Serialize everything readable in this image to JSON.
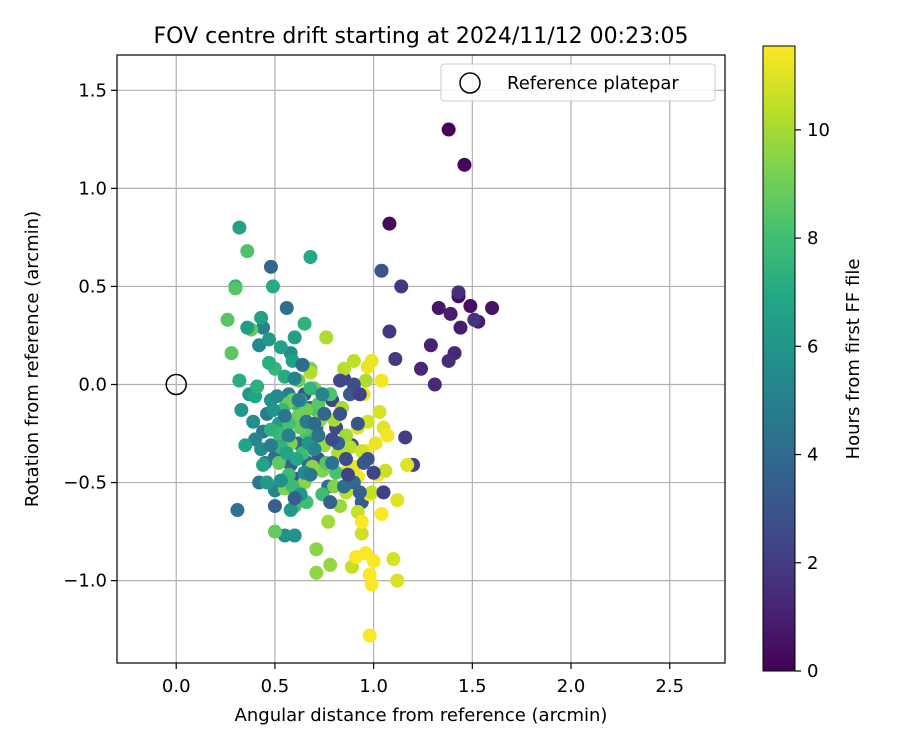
{
  "chart_data": {
    "type": "scatter",
    "title": "FOV centre drift starting at 2024/11/12 00:23:05",
    "xlabel": "Angular distance from reference (arcmin)",
    "ylabel": "Rotation from reference (arcmin)",
    "xlim": [
      -0.3,
      2.78
    ],
    "ylim": [
      -1.42,
      1.68
    ],
    "xticks": [
      0.0,
      0.5,
      1.0,
      1.5,
      2.0,
      2.5
    ],
    "xtick_labels": [
      "0.0",
      "0.5",
      "1.0",
      "1.5",
      "2.0",
      "2.5"
    ],
    "yticks": [
      -1.0,
      -0.5,
      0.0,
      0.5,
      1.0,
      1.5
    ],
    "ytick_labels": [
      "−1.0",
      "−0.5",
      "0.0",
      "0.5",
      "1.0",
      "1.5"
    ],
    "grid": true,
    "legend": {
      "position": "top-right",
      "entries": [
        {
          "label": "Reference platepar",
          "marker": "open-circle",
          "x": 0.0,
          "y": 0.0
        }
      ]
    },
    "colorbar": {
      "label": "Hours from first FF file",
      "colormap": "viridis",
      "range": [
        0,
        11.55
      ],
      "ticks": [
        0,
        2,
        4,
        6,
        8,
        10
      ],
      "tick_labels": [
        "0",
        "2",
        "4",
        "6",
        "8",
        "10"
      ]
    },
    "points": [
      [
        1.38,
        1.3,
        0.1
      ],
      [
        1.46,
        1.12,
        0.2
      ],
      [
        1.08,
        0.82,
        0.3
      ],
      [
        1.43,
        0.45,
        0.4
      ],
      [
        1.49,
        0.4,
        0.5
      ],
      [
        1.6,
        0.39,
        0.6
      ],
      [
        1.33,
        0.39,
        0.7
      ],
      [
        1.53,
        0.32,
        0.8
      ],
      [
        1.44,
        0.29,
        0.9
      ],
      [
        1.39,
        0.36,
        1.0
      ],
      [
        1.29,
        0.2,
        1.1
      ],
      [
        1.24,
        0.08,
        1.2
      ],
      [
        1.41,
        0.16,
        1.3
      ],
      [
        1.31,
        0.0,
        1.4
      ],
      [
        1.38,
        0.12,
        1.5
      ],
      [
        1.43,
        0.47,
        1.6
      ],
      [
        1.51,
        0.33,
        1.7
      ],
      [
        1.14,
        0.5,
        1.8
      ],
      [
        1.08,
        0.27,
        1.9
      ],
      [
        1.11,
        0.13,
        2.0
      ],
      [
        1.16,
        -0.27,
        2.1
      ],
      [
        1.2,
        -0.41,
        2.2
      ],
      [
        0.85,
        0.03,
        2.3
      ],
      [
        0.79,
        -0.08,
        2.4
      ],
      [
        0.74,
        -0.16,
        2.5
      ],
      [
        0.81,
        -0.22,
        2.6
      ],
      [
        0.89,
        -0.31,
        2.7
      ],
      [
        0.68,
        -0.12,
        2.8
      ],
      [
        0.72,
        -0.38,
        2.9
      ],
      [
        1.04,
        0.58,
        3.0
      ],
      [
        0.65,
        -0.05,
        3.1
      ],
      [
        0.6,
        -0.48,
        3.2
      ],
      [
        0.88,
        -0.45,
        3.3
      ],
      [
        0.94,
        -0.6,
        3.4
      ],
      [
        0.5,
        -0.62,
        3.5
      ],
      [
        0.62,
        -0.3,
        3.6
      ],
      [
        0.58,
        -0.41,
        3.7
      ],
      [
        0.48,
        0.6,
        3.8
      ],
      [
        0.71,
        -0.22,
        3.9
      ],
      [
        0.67,
        -0.4,
        4.0
      ],
      [
        0.77,
        -0.52,
        4.1
      ],
      [
        0.56,
        0.39,
        4.2
      ],
      [
        0.31,
        -0.64,
        4.3
      ],
      [
        0.5,
        -0.37,
        4.4
      ],
      [
        0.45,
        -0.4,
        4.5
      ],
      [
        0.42,
        -0.5,
        4.6
      ],
      [
        0.44,
        -0.24,
        4.7
      ],
      [
        0.46,
        -0.15,
        4.8
      ],
      [
        0.54,
        -0.3,
        4.9
      ],
      [
        0.57,
        -0.05,
        5.0
      ],
      [
        0.44,
        0.29,
        5.1
      ],
      [
        0.5,
        -0.54,
        5.2
      ],
      [
        0.4,
        -0.28,
        5.3
      ],
      [
        0.42,
        0.2,
        5.4
      ],
      [
        0.63,
        -0.18,
        5.5
      ],
      [
        0.7,
        -0.28,
        5.6
      ],
      [
        0.58,
        0.16,
        5.7
      ],
      [
        0.55,
        -0.77,
        5.8
      ],
      [
        0.6,
        -0.77,
        5.9
      ],
      [
        0.48,
        -0.08,
        6.0
      ],
      [
        0.33,
        -0.13,
        6.1
      ],
      [
        0.37,
        -0.05,
        6.2
      ],
      [
        0.46,
        -0.5,
        6.3
      ],
      [
        0.52,
        -0.2,
        6.4
      ],
      [
        0.6,
        0.24,
        6.5
      ],
      [
        0.43,
        0.34,
        6.6
      ],
      [
        0.32,
        0.8,
        6.7
      ],
      [
        0.35,
        -0.31,
        6.8
      ],
      [
        0.4,
        -0.06,
        6.9
      ],
      [
        0.68,
        0.65,
        7.0
      ],
      [
        0.49,
        0.5,
        7.1
      ],
      [
        0.32,
        0.02,
        7.2
      ],
      [
        0.3,
        0.5,
        7.3
      ],
      [
        0.65,
        0.31,
        7.4
      ],
      [
        0.61,
        -0.1,
        7.5
      ],
      [
        0.5,
        0.08,
        7.6
      ],
      [
        0.52,
        -0.25,
        7.7
      ],
      [
        0.64,
        -0.35,
        7.8
      ],
      [
        0.57,
        -0.46,
        7.9
      ],
      [
        0.6,
        -0.62,
        8.0
      ],
      [
        0.72,
        -0.14,
        8.1
      ],
      [
        0.66,
        -0.25,
        8.2
      ],
      [
        0.36,
        0.68,
        8.3
      ],
      [
        0.3,
        0.49,
        8.4
      ],
      [
        0.26,
        0.33,
        8.5
      ],
      [
        0.28,
        0.16,
        8.6
      ],
      [
        0.38,
        0.28,
        8.7
      ],
      [
        0.5,
        -0.75,
        8.8
      ],
      [
        0.59,
        -0.08,
        8.9
      ],
      [
        0.62,
        0.02,
        9.0
      ],
      [
        0.68,
        0.08,
        9.1
      ],
      [
        0.7,
        -0.02,
        9.2
      ],
      [
        0.74,
        -0.44,
        9.3
      ],
      [
        0.8,
        -0.52,
        9.4
      ],
      [
        0.71,
        -0.84,
        9.5
      ],
      [
        0.71,
        -0.96,
        9.6
      ],
      [
        0.78,
        -0.92,
        9.7
      ],
      [
        0.83,
        -0.62,
        9.8
      ],
      [
        0.77,
        -0.7,
        9.9
      ],
      [
        0.84,
        -0.12,
        10.0
      ],
      [
        0.76,
        0.24,
        10.1
      ],
      [
        0.68,
        0.06,
        10.2
      ],
      [
        0.88,
        -0.32,
        10.3
      ],
      [
        0.86,
        -0.55,
        10.4
      ],
      [
        0.89,
        -0.93,
        10.5
      ],
      [
        0.92,
        -0.65,
        10.6
      ],
      [
        0.94,
        -0.76,
        10.7
      ],
      [
        1.1,
        -0.89,
        10.8
      ],
      [
        1.12,
        -1.0,
        10.9
      ],
      [
        1.12,
        -0.59,
        11.0
      ],
      [
        1.17,
        -0.41,
        11.0
      ],
      [
        1.05,
        -0.22,
        11.1
      ],
      [
        0.97,
        0.09,
        11.2
      ],
      [
        0.99,
        0.12,
        11.2
      ],
      [
        0.96,
        -0.34,
        11.3
      ],
      [
        0.9,
        -0.42,
        11.3
      ],
      [
        1.02,
        -0.46,
        11.4
      ],
      [
        1.07,
        -0.26,
        11.4
      ],
      [
        1.04,
        -0.66,
        11.5
      ],
      [
        0.98,
        -0.56,
        11.5
      ],
      [
        1.0,
        -0.9,
        11.5
      ],
      [
        0.96,
        -0.86,
        11.5
      ],
      [
        0.98,
        -0.97,
        11.5
      ],
      [
        0.99,
        -1.02,
        11.5
      ],
      [
        0.98,
        -1.28,
        11.5
      ],
      [
        0.91,
        -0.88,
        11.5
      ],
      [
        0.94,
        -0.7,
        11.5
      ],
      [
        0.92,
        -0.47,
        11.4
      ],
      [
        1.04,
        0.02,
        11.4
      ],
      [
        0.95,
        -0.05,
        11.3
      ],
      [
        1.01,
        -0.3,
        11.2
      ],
      [
        0.87,
        -0.44,
        11.1
      ],
      [
        0.92,
        -0.22,
        11.0
      ],
      [
        1.03,
        -0.14,
        10.9
      ],
      [
        0.97,
        -0.19,
        10.8
      ],
      [
        0.94,
        -0.34,
        10.7
      ],
      [
        1.06,
        -0.44,
        10.6
      ],
      [
        0.99,
        -0.55,
        10.5
      ],
      [
        0.9,
        0.12,
        10.4
      ],
      [
        0.85,
        0.08,
        10.3
      ],
      [
        0.82,
        -0.35,
        10.2
      ],
      [
        0.96,
        0.02,
        10.1
      ],
      [
        0.8,
        -0.18,
        10.0
      ],
      [
        0.86,
        -0.26,
        9.9
      ],
      [
        0.75,
        -0.31,
        9.8
      ],
      [
        0.73,
        -0.18,
        9.7
      ],
      [
        0.69,
        -0.42,
        9.6
      ],
      [
        0.65,
        -0.5,
        9.5
      ],
      [
        0.61,
        -0.55,
        9.4
      ],
      [
        0.55,
        -0.53,
        9.3
      ],
      [
        0.58,
        -0.3,
        9.2
      ],
      [
        0.66,
        -0.13,
        9.1
      ],
      [
        0.62,
        -0.16,
        9.0
      ],
      [
        0.56,
        -0.1,
        8.9
      ],
      [
        0.63,
        -0.22,
        8.8
      ],
      [
        0.52,
        -0.4,
        8.7
      ],
      [
        0.69,
        -0.33,
        8.6
      ],
      [
        0.72,
        -0.1,
        8.5
      ],
      [
        0.76,
        -0.4,
        8.4
      ],
      [
        0.78,
        -0.05,
        8.3
      ],
      [
        0.81,
        -0.45,
        8.2
      ],
      [
        0.57,
        -0.2,
        8.1
      ],
      [
        0.66,
        -0.6,
        8.0
      ],
      [
        0.74,
        -0.56,
        7.9
      ],
      [
        0.59,
        -0.52,
        7.8
      ],
      [
        0.54,
        -0.13,
        7.7
      ],
      [
        0.68,
        -0.02,
        7.6
      ],
      [
        0.53,
        -0.32,
        7.5
      ],
      [
        0.48,
        -0.23,
        7.4
      ],
      [
        0.41,
        -0.01,
        7.3
      ],
      [
        0.47,
        0.11,
        7.2
      ],
      [
        0.55,
        0.04,
        7.1
      ],
      [
        0.63,
        -0.08,
        7.0
      ],
      [
        0.61,
        -0.38,
        6.9
      ],
      [
        0.56,
        -0.35,
        6.8
      ],
      [
        0.44,
        -0.41,
        6.7
      ],
      [
        0.53,
        0.19,
        6.6
      ],
      [
        0.59,
        0.12,
        6.5
      ],
      [
        0.36,
        0.29,
        6.4
      ],
      [
        0.47,
        0.23,
        6.3
      ],
      [
        0.58,
        -0.64,
        6.2
      ],
      [
        0.63,
        -0.56,
        6.1
      ],
      [
        0.67,
        -0.3,
        6.0
      ],
      [
        0.49,
        -0.13,
        5.9
      ],
      [
        0.53,
        -0.49,
        5.8
      ],
      [
        0.39,
        -0.19,
        5.7
      ],
      [
        0.43,
        -0.33,
        5.6
      ],
      [
        0.51,
        -0.06,
        5.5
      ],
      [
        0.65,
        -0.45,
        5.4
      ],
      [
        0.7,
        -0.33,
        5.3
      ],
      [
        0.74,
        -0.05,
        5.2
      ],
      [
        0.6,
        0.03,
        5.1
      ],
      [
        0.57,
        -0.26,
        5.0
      ],
      [
        0.48,
        -0.31,
        4.9
      ],
      [
        0.62,
        -0.08,
        4.8
      ],
      [
        0.66,
        -0.19,
        4.7
      ],
      [
        0.68,
        -0.46,
        4.6
      ],
      [
        0.55,
        -0.16,
        4.5
      ],
      [
        0.72,
        -0.26,
        4.4
      ],
      [
        0.79,
        -0.4,
        4.3
      ],
      [
        0.85,
        -0.52,
        4.2
      ],
      [
        0.64,
        0.1,
        4.1
      ],
      [
        0.7,
        -0.2,
        4.0
      ],
      [
        0.9,
        -0.5,
        3.9
      ],
      [
        0.75,
        -0.15,
        3.8
      ],
      [
        0.82,
        -0.3,
        3.7
      ],
      [
        0.78,
        -0.6,
        3.6
      ],
      [
        0.93,
        -0.55,
        3.5
      ],
      [
        0.6,
        -0.58,
        3.4
      ],
      [
        0.95,
        -0.4,
        3.3
      ],
      [
        0.88,
        -0.05,
        3.2
      ],
      [
        0.92,
        -0.2,
        3.1
      ],
      [
        0.97,
        -0.38,
        3.0
      ],
      [
        0.83,
        -0.15,
        2.9
      ],
      [
        0.9,
        0.0,
        2.8
      ],
      [
        0.86,
        -0.38,
        2.7
      ],
      [
        0.79,
        -0.28,
        2.6
      ],
      [
        0.83,
        0.02,
        2.5
      ],
      [
        1.0,
        -0.45,
        2.4
      ],
      [
        0.87,
        -0.46,
        2.3
      ],
      [
        0.93,
        -0.05,
        2.2
      ],
      [
        1.05,
        -0.55,
        2.1
      ]
    ]
  }
}
